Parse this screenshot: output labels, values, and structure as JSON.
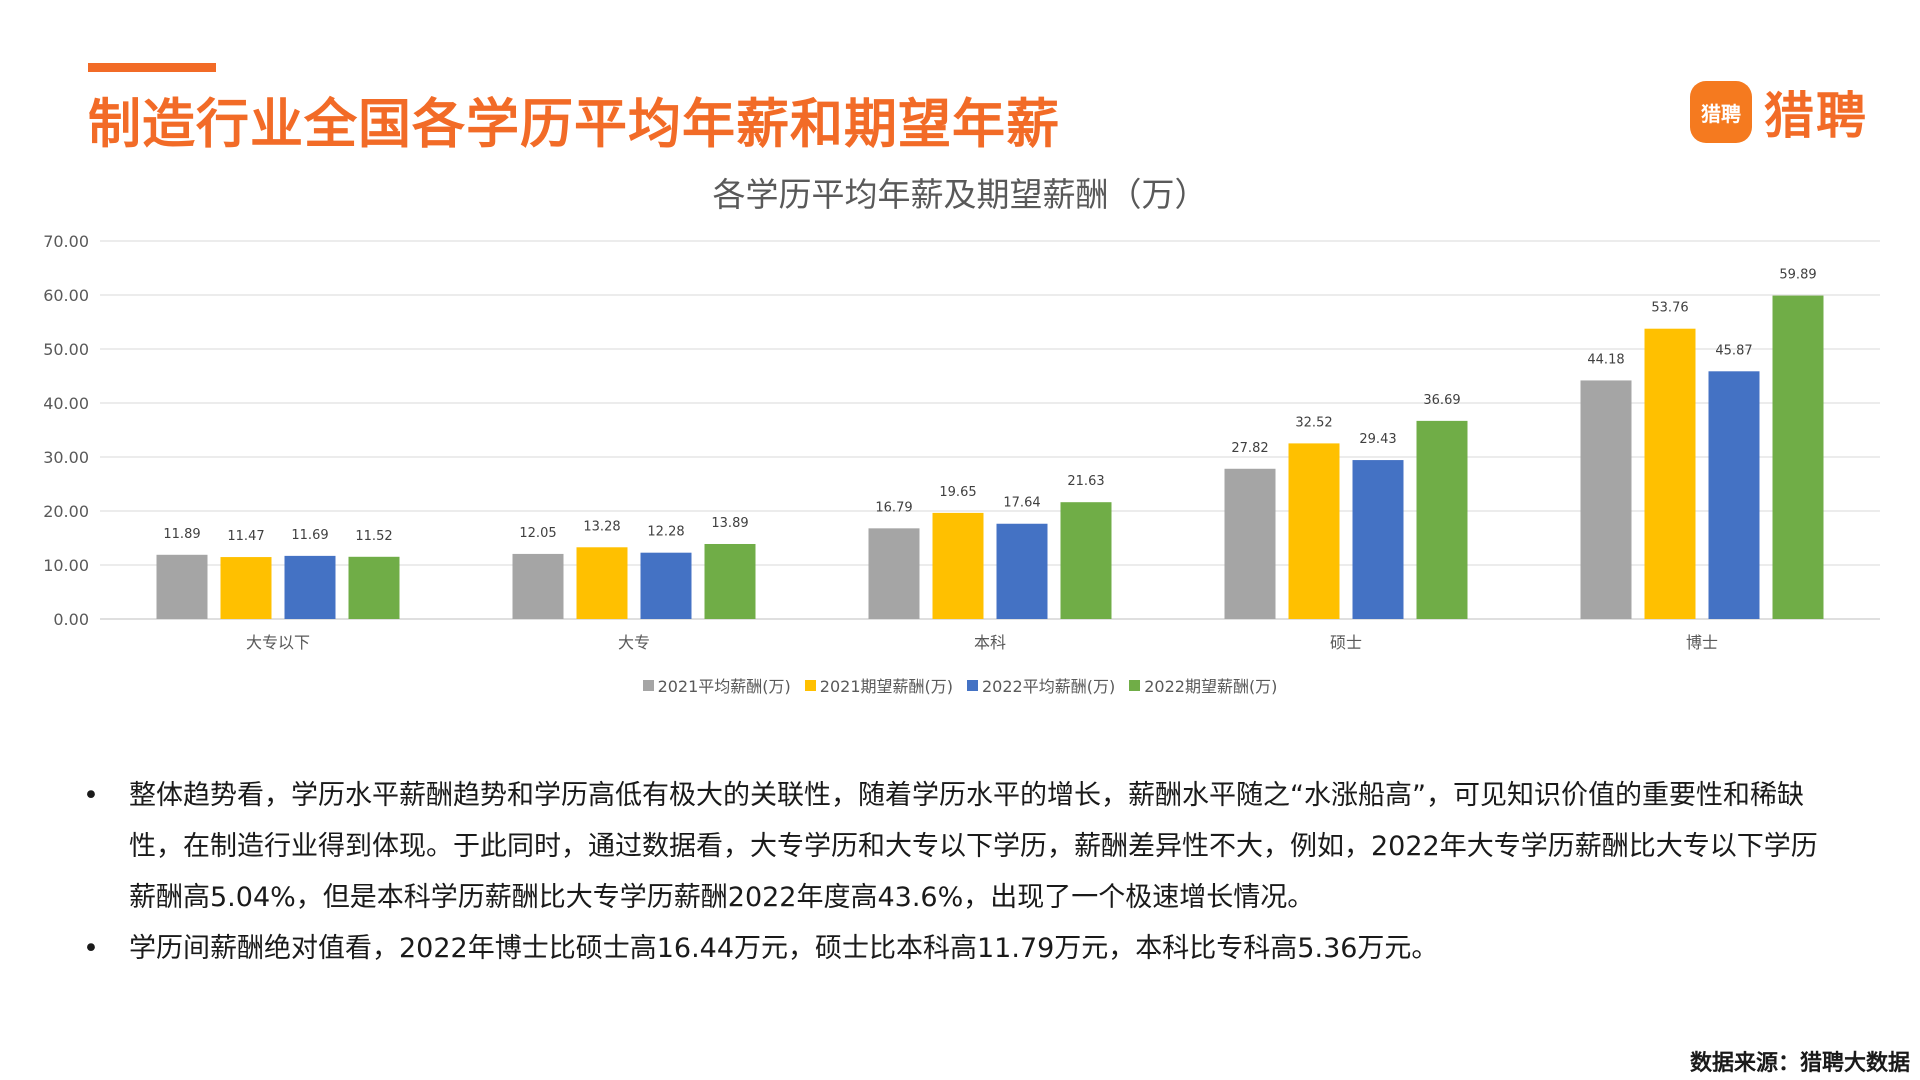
{
  "header": {
    "title": "制造行业全国各学历平均年薪和期望年薪",
    "logo_badge": "猎聘",
    "logo_text": "猎聘"
  },
  "colors": {
    "accent": "#F26B27",
    "series": [
      "#A5A5A5",
      "#FFC000",
      "#4472C4",
      "#70AD47"
    ]
  },
  "chart_data": {
    "type": "bar",
    "title": "各学历平均年薪及期望薪酬（万）",
    "categories": [
      "大专以下",
      "大专",
      "本科",
      "硕士",
      "博士"
    ],
    "series": [
      {
        "name": "2021平均薪酬(万)",
        "values": [
          11.89,
          12.05,
          16.79,
          27.82,
          44.18
        ]
      },
      {
        "name": "2021期望薪酬(万)",
        "values": [
          11.47,
          13.28,
          19.65,
          32.52,
          53.76
        ]
      },
      {
        "name": "2022平均薪酬(万)",
        "values": [
          11.69,
          12.28,
          17.64,
          29.43,
          45.87
        ]
      },
      {
        "name": "2022期望薪酬(万)",
        "values": [
          11.52,
          13.89,
          21.63,
          36.69,
          59.89
        ]
      }
    ],
    "yticks": [
      "0.00",
      "10.00",
      "20.00",
      "30.00",
      "40.00",
      "50.00",
      "60.00",
      "70.00"
    ],
    "ylim": [
      0,
      70
    ],
    "grid": true,
    "legend": "bottom"
  },
  "bullets": [
    "整体趋势看，学历水平薪酬趋势和学历高低有极大的关联性，随着学历水平的增长，薪酬水平随之“水涨船高”，可见知识价值的重要性和稀缺性，在制造行业得到体现。于此同时，通过数据看，大专学历和大专以下学历，薪酬差异性不大，例如，2022年大专学历薪酬比大专以下学历薪酬高5.04%，但是本科学历薪酬比大专学历薪酬2022年度高43.6%，出现了一个极速增长情况。",
    "学历间薪酬绝对值看，2022年博士比硕士高16.44万元，硕士比本科高11.79万元，本科比专科高5.36万元。"
  ],
  "bullet_symbol": "•",
  "source": "数据来源：猎聘大数据"
}
